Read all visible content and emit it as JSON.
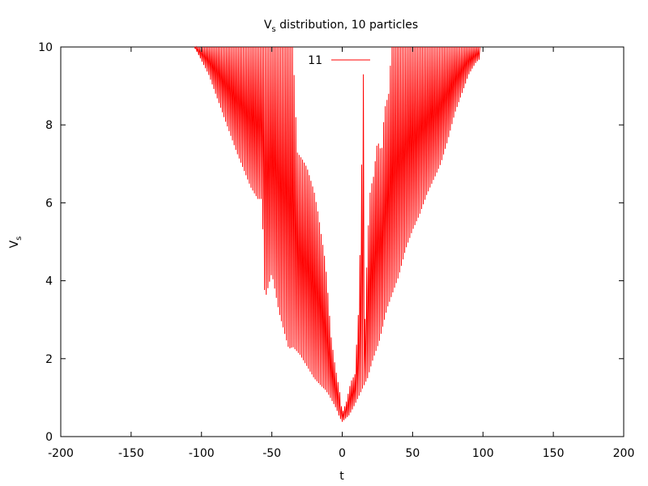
{
  "chart_data": {
    "type": "line",
    "title": {
      "main": "V",
      "subscript": "s",
      "rest": " distribution, 10 particles"
    },
    "xlabel": "t",
    "ylabel": {
      "main": "V",
      "subscript": "s"
    },
    "xlim": [
      -200,
      200
    ],
    "ylim": [
      0,
      10
    ],
    "xticks": [
      -200,
      -150,
      -100,
      -50,
      0,
      50,
      100,
      150,
      200
    ],
    "yticks": [
      0,
      2,
      4,
      6,
      8,
      10
    ],
    "xtick_labels": [
      "-200",
      "-150",
      "-100",
      "-50",
      "0",
      "50",
      "100",
      "150",
      "200"
    ],
    "ytick_labels": [
      "0",
      "2",
      "4",
      "6",
      "8",
      "10"
    ],
    "legend": {
      "position": "top-center",
      "entries": [
        {
          "label": "11",
          "color": "#ff0000"
        }
      ]
    },
    "series": [
      {
        "name": "11",
        "color": "#ff0000",
        "envelope_upper": [
          [
            -105,
            10
          ],
          [
            -60,
            10
          ],
          [
            -57,
            10
          ],
          [
            -52,
            10
          ],
          [
            -48,
            10
          ],
          [
            -45,
            10
          ],
          [
            -40,
            10
          ],
          [
            -35,
            10
          ],
          [
            -32,
            7.3
          ],
          [
            -28,
            7.1
          ],
          [
            -25,
            6.9
          ],
          [
            -20,
            6.3
          ],
          [
            -17,
            5.7
          ],
          [
            -15,
            5.2
          ],
          [
            -12,
            4.5
          ],
          [
            -10,
            3.6
          ],
          [
            -8,
            2.6
          ],
          [
            -5,
            1.8
          ],
          [
            -2,
            1.2
          ],
          [
            0,
            0.6
          ],
          [
            3,
            0.9
          ],
          [
            6,
            1.4
          ],
          [
            9,
            1.6
          ],
          [
            12,
            3.5
          ],
          [
            15,
            9.3
          ],
          [
            16,
            2.8
          ],
          [
            18,
            5.0
          ],
          [
            20,
            6.4
          ],
          [
            22,
            6.6
          ],
          [
            25,
            7.6
          ],
          [
            28,
            7.3
          ],
          [
            30,
            8.4
          ],
          [
            33,
            8.8
          ],
          [
            35,
            10
          ],
          [
            40,
            10
          ],
          [
            60,
            10
          ],
          [
            80,
            10
          ],
          [
            88,
            10
          ],
          [
            93,
            10
          ],
          [
            98,
            10
          ]
        ],
        "envelope_lower": [
          [
            -105,
            10
          ],
          [
            -95,
            9.3
          ],
          [
            -85,
            8.3
          ],
          [
            -75,
            7.3
          ],
          [
            -65,
            6.4
          ],
          [
            -60,
            6.1
          ],
          [
            -57,
            6.1
          ],
          [
            -55,
            3.5
          ],
          [
            -50,
            4.2
          ],
          [
            -45,
            3.2
          ],
          [
            -42,
            2.8
          ],
          [
            -38,
            2.25
          ],
          [
            -35,
            2.3
          ],
          [
            -30,
            2.1
          ],
          [
            -25,
            1.8
          ],
          [
            -20,
            1.5
          ],
          [
            -15,
            1.3
          ],
          [
            -12,
            1.2
          ],
          [
            -10,
            1.1
          ],
          [
            -7,
            0.9
          ],
          [
            -4,
            0.7
          ],
          [
            -2,
            0.5
          ],
          [
            0,
            0.38
          ],
          [
            2,
            0.45
          ],
          [
            5,
            0.55
          ],
          [
            8,
            0.75
          ],
          [
            10,
            0.9
          ],
          [
            14,
            1.2
          ],
          [
            18,
            1.5
          ],
          [
            22,
            2.0
          ],
          [
            26,
            2.4
          ],
          [
            30,
            3.0
          ],
          [
            32,
            3.3
          ],
          [
            35,
            3.6
          ],
          [
            40,
            4.1
          ],
          [
            45,
            4.8
          ],
          [
            50,
            5.3
          ],
          [
            55,
            5.7
          ],
          [
            60,
            6.2
          ],
          [
            65,
            6.6
          ],
          [
            70,
            7.0
          ],
          [
            75,
            7.6
          ],
          [
            80,
            8.3
          ],
          [
            85,
            8.8
          ],
          [
            90,
            9.3
          ],
          [
            95,
            9.6
          ],
          [
            98,
            9.7
          ]
        ]
      }
    ],
    "grid": false
  }
}
